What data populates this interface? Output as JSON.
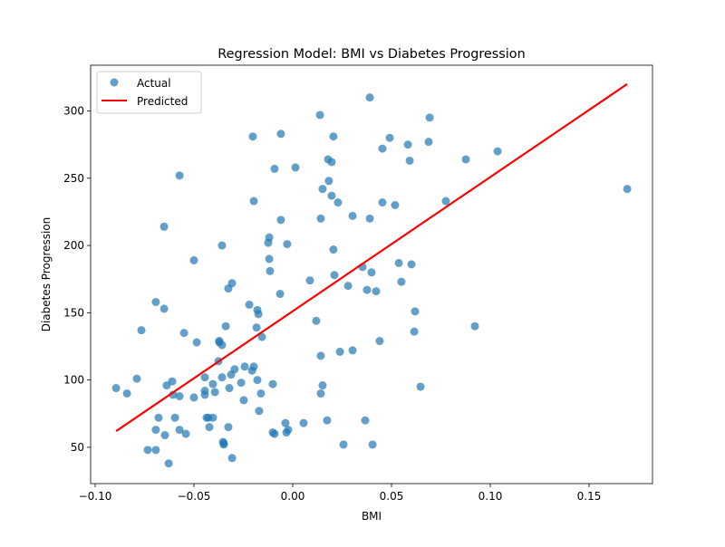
{
  "chart_data": {
    "type": "scatter",
    "title": "Regression Model: BMI vs Diabetes Progression",
    "xlabel": "BMI",
    "ylabel": "Diabetes Progression",
    "xlim": [
      -0.1023,
      0.1821
    ],
    "ylim": [
      23,
      334
    ],
    "xticks": [
      -0.1,
      -0.05,
      0.0,
      0.05,
      0.1,
      0.15
    ],
    "xtick_labels": [
      "−0.10",
      "−0.05",
      "0.00",
      "0.05",
      "0.10",
      "0.15"
    ],
    "yticks": [
      50,
      100,
      150,
      200,
      250,
      300
    ],
    "ytick_labels": [
      "50",
      "100",
      "150",
      "200",
      "250",
      "300"
    ],
    "grid": false,
    "legend": {
      "placement": "top-left",
      "entries": [
        "Actual",
        "Predicted"
      ]
    },
    "colors": {
      "actual": "#1f77b4",
      "predicted": "#ff0000"
    },
    "series": [
      {
        "name": "Actual",
        "type": "scatter",
        "points": [
          [
            -0.0894,
            94
          ],
          [
            -0.0839,
            90
          ],
          [
            -0.0789,
            101
          ],
          [
            -0.0766,
            137
          ],
          [
            -0.0734,
            48
          ],
          [
            -0.0693,
            48
          ],
          [
            -0.0693,
            158
          ],
          [
            -0.0693,
            63
          ],
          [
            -0.0679,
            72
          ],
          [
            -0.0651,
            153
          ],
          [
            -0.0651,
            214
          ],
          [
            -0.0647,
            59
          ],
          [
            -0.0628,
            38
          ],
          [
            -0.0638,
            96
          ],
          [
            -0.061,
            99
          ],
          [
            -0.0606,
            89
          ],
          [
            -0.0596,
            72
          ],
          [
            -0.0573,
            252
          ],
          [
            -0.0573,
            88
          ],
          [
            -0.0573,
            63
          ],
          [
            -0.055,
            135
          ],
          [
            -0.0541,
            60
          ],
          [
            -0.05,
            87
          ],
          [
            -0.05,
            189
          ],
          [
            -0.0486,
            128
          ],
          [
            -0.0445,
            102
          ],
          [
            -0.0445,
            92
          ],
          [
            -0.0445,
            89
          ],
          [
            -0.0436,
            72
          ],
          [
            -0.0427,
            72
          ],
          [
            -0.0422,
            65
          ],
          [
            -0.0404,
            97
          ],
          [
            -0.0404,
            72
          ],
          [
            -0.0394,
            91
          ],
          [
            -0.0376,
            114
          ],
          [
            -0.0372,
            129
          ],
          [
            -0.0372,
            128
          ],
          [
            -0.0358,
            200
          ],
          [
            -0.0358,
            126
          ],
          [
            -0.0358,
            102
          ],
          [
            -0.0353,
            54
          ],
          [
            -0.0349,
            52
          ],
          [
            -0.0349,
            53
          ],
          [
            -0.0339,
            140
          ],
          [
            -0.0326,
            168
          ],
          [
            -0.0326,
            65
          ],
          [
            -0.0321,
            94
          ],
          [
            -0.0312,
            104
          ],
          [
            -0.0307,
            172
          ],
          [
            -0.0307,
            42
          ],
          [
            -0.0294,
            108
          ],
          [
            -0.0261,
            98
          ],
          [
            -0.0248,
            85
          ],
          [
            -0.0243,
            110
          ],
          [
            -0.022,
            156
          ],
          [
            -0.0206,
            107
          ],
          [
            -0.0202,
            281
          ],
          [
            -0.0197,
            110
          ],
          [
            -0.0197,
            233
          ],
          [
            -0.0183,
            139
          ],
          [
            -0.0179,
            152
          ],
          [
            -0.0179,
            100
          ],
          [
            -0.0174,
            149
          ],
          [
            -0.017,
            77
          ],
          [
            -0.0161,
            90
          ],
          [
            -0.0156,
            132
          ],
          [
            -0.0124,
            202
          ],
          [
            -0.0119,
            206
          ],
          [
            -0.0119,
            190
          ],
          [
            -0.0115,
            181
          ],
          [
            -0.0101,
            97
          ],
          [
            -0.0101,
            61
          ],
          [
            -0.0092,
            60
          ],
          [
            -0.0092,
            257
          ],
          [
            -0.0064,
            164
          ],
          [
            -0.006,
            219
          ],
          [
            -0.006,
            283
          ],
          [
            -0.0037,
            68
          ],
          [
            -0.0028,
            201
          ],
          [
            -0.0032,
            61
          ],
          [
            -0.0023,
            63
          ],
          [
            0.0014,
            258
          ],
          [
            0.0055,
            68
          ],
          [
            0.0087,
            174
          ],
          [
            0.0119,
            144
          ],
          [
            0.0138,
            297
          ],
          [
            0.0142,
            220
          ],
          [
            0.0142,
            118
          ],
          [
            0.0142,
            90
          ],
          [
            0.0151,
            96
          ],
          [
            0.0151,
            242
          ],
          [
            0.0174,
            70
          ],
          [
            0.0179,
            264
          ],
          [
            0.0183,
            248
          ],
          [
            0.0197,
            237
          ],
          [
            0.0197,
            262
          ],
          [
            0.0206,
            281
          ],
          [
            0.0206,
            197
          ],
          [
            0.0211,
            178
          ],
          [
            0.0229,
            232
          ],
          [
            0.0239,
            121
          ],
          [
            0.0257,
            52
          ],
          [
            0.028,
            170
          ],
          [
            0.0303,
            222
          ],
          [
            0.0303,
            122
          ],
          [
            0.0353,
            184
          ],
          [
            0.0367,
            70
          ],
          [
            0.0376,
            167
          ],
          [
            0.039,
            310
          ],
          [
            0.039,
            220
          ],
          [
            0.0399,
            180
          ],
          [
            0.0404,
            52
          ],
          [
            0.0422,
            166
          ],
          [
            0.044,
            129
          ],
          [
            0.0454,
            272
          ],
          [
            0.0454,
            232
          ],
          [
            0.0491,
            280
          ],
          [
            0.0518,
            230
          ],
          [
            0.0537,
            187
          ],
          [
            0.055,
            173
          ],
          [
            0.0583,
            275
          ],
          [
            0.0592,
            263
          ],
          [
            0.0601,
            186
          ],
          [
            0.0615,
            136
          ],
          [
            0.0619,
            151
          ],
          [
            0.0647,
            95
          ],
          [
            0.0688,
            277
          ],
          [
            0.0693,
            295
          ],
          [
            0.0775,
            233
          ],
          [
            0.0876,
            264
          ],
          [
            0.0922,
            140
          ],
          [
            0.1037,
            270
          ],
          [
            0.1693,
            242
          ]
        ]
      },
      {
        "name": "Predicted",
        "type": "line",
        "points": [
          [
            -0.0894,
            62
          ],
          [
            0.1693,
            320
          ]
        ]
      }
    ]
  }
}
